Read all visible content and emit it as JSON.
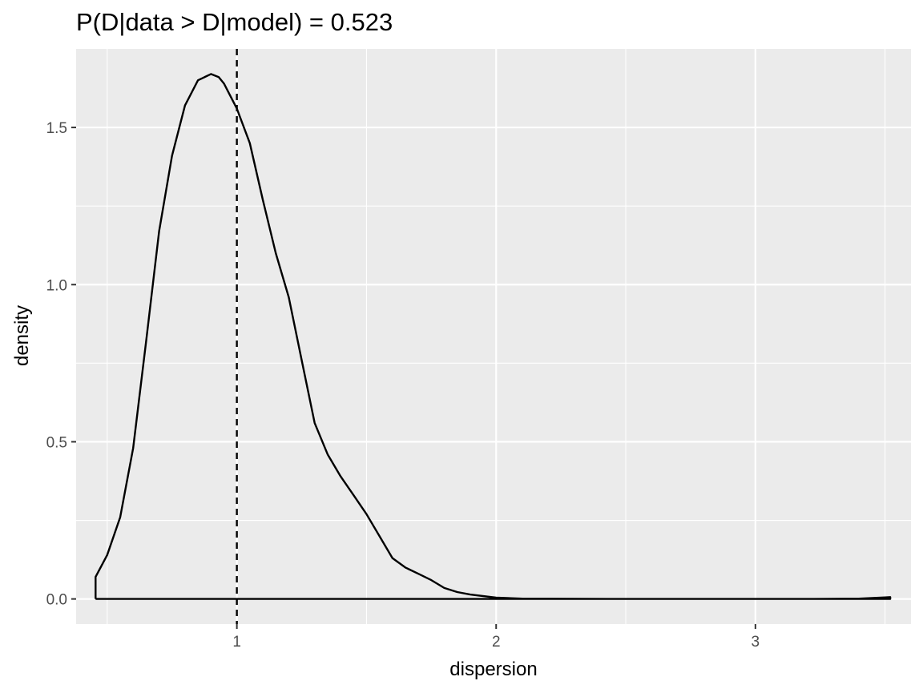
{
  "chart_data": {
    "type": "line",
    "title": "P(D|data > D|model) = 0.523",
    "xlabel": "dispersion",
    "ylabel": "density",
    "xlim": [
      0.38,
      3.6
    ],
    "ylim": [
      -0.08,
      1.75
    ],
    "x_ticks": [
      1,
      2,
      3
    ],
    "x_tick_labels": [
      "1",
      "2",
      "3"
    ],
    "x_minor_ticks": [
      0.5,
      1.5,
      2.5,
      3.5
    ],
    "y_ticks": [
      0.0,
      0.5,
      1.0,
      1.5
    ],
    "y_tick_labels": [
      "0.0",
      "0.5",
      "1.0",
      "1.5"
    ],
    "y_minor_ticks": [
      0.25,
      0.75,
      1.25
    ],
    "grid": true,
    "panel_background": "#ebebeb",
    "grid_color": "#ffffff",
    "line_color": "#000000",
    "reference_line": {
      "x": 1.0,
      "style": "dashed",
      "color": "#000000"
    },
    "series": [
      {
        "x": [
          0.455,
          0.455,
          0.5,
          0.55,
          0.6,
          0.65,
          0.7,
          0.75,
          0.8,
          0.85,
          0.9,
          0.93,
          0.95,
          1.0,
          1.05,
          1.1,
          1.15,
          1.2,
          1.25,
          1.3,
          1.35,
          1.4,
          1.45,
          1.5,
          1.55,
          1.6,
          1.65,
          1.7,
          1.75,
          1.8,
          1.85,
          1.9,
          2.0,
          2.1,
          2.5,
          3.0,
          3.2,
          3.4,
          3.45,
          3.5,
          3.52,
          3.52,
          0.455
        ],
        "y": [
          0.0,
          0.07,
          0.14,
          0.26,
          0.48,
          0.82,
          1.17,
          1.41,
          1.57,
          1.65,
          1.67,
          1.66,
          1.64,
          1.56,
          1.45,
          1.27,
          1.1,
          0.96,
          0.76,
          0.56,
          0.46,
          0.39,
          0.33,
          0.27,
          0.2,
          0.13,
          0.1,
          0.08,
          0.06,
          0.035,
          0.022,
          0.014,
          0.004,
          0.001,
          0.0,
          0.0,
          0.0,
          0.001,
          0.003,
          0.005,
          0.006,
          0.0,
          0.0
        ]
      }
    ]
  }
}
